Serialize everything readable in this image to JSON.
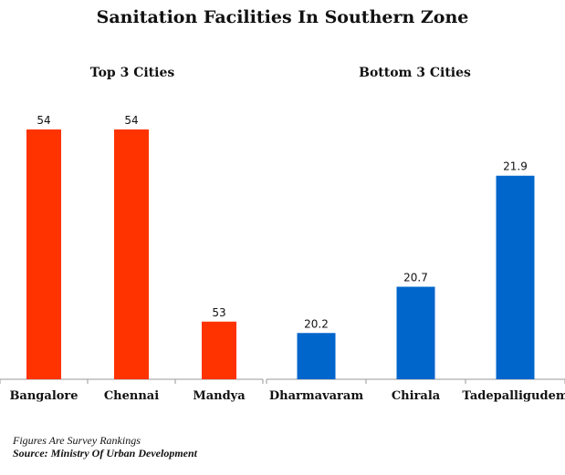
{
  "title": "Sanitation Facilities In Southern Zone",
  "footnotes": {
    "note": "Figures Are Survey Rankings",
    "source": "Source: Ministry Of Urban Development"
  },
  "chart_data": [
    {
      "type": "bar",
      "title": "Top 3 Cities",
      "categories": [
        "Bangalore",
        "Chennai",
        "Mandya"
      ],
      "values": [
        54,
        54,
        53
      ],
      "labels": [
        "54",
        "54",
        "53"
      ],
      "color": "#ff3300",
      "ylim": [
        52.7,
        54.0
      ],
      "grid": false
    },
    {
      "type": "bar",
      "title": "Bottom 3 Cities",
      "categories": [
        "Dharmavaram",
        "Chirala",
        "Tadepalligudem"
      ],
      "values": [
        20.2,
        20.7,
        21.9
      ],
      "labels": [
        "20.2",
        "20.7",
        "21.9"
      ],
      "color": "#0066cc",
      "ylim": [
        19.7,
        22.4
      ],
      "grid": false
    }
  ]
}
